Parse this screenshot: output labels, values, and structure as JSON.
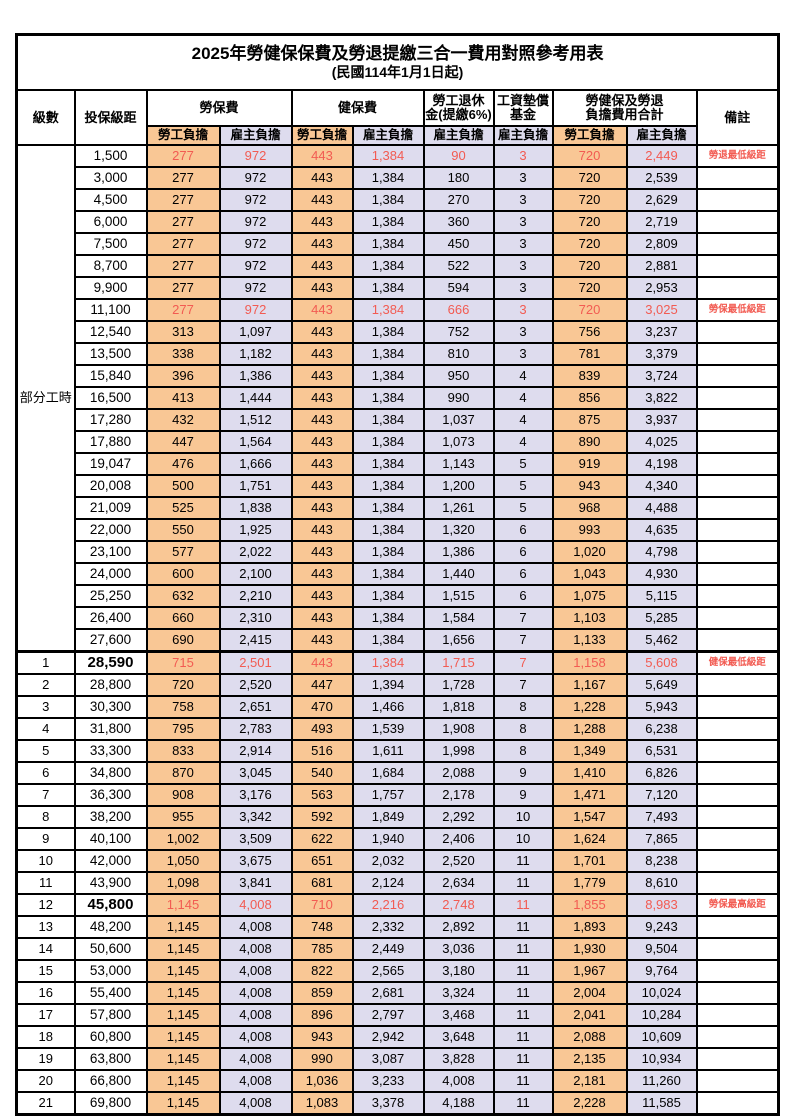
{
  "title": "2025年勞健保保費及勞退提繳三合一費用對照參考用表",
  "subtitle": "(民國114年1月1日起)",
  "colors": {
    "employee_bg": "#F9C795",
    "employer_bg": "#DEDCEE",
    "highlight_text": "#F25B52",
    "border": "#000000"
  },
  "header": {
    "level": "級數",
    "bracket": "投保級距",
    "labor_ins": "勞保費",
    "health_ins": "健保費",
    "pension_line1": "勞工退休",
    "pension_line2": "金(提繳6%)",
    "wage_fund_line1": "工資墊償",
    "wage_fund_line2": "基金",
    "total_line1": "勞健保及勞退",
    "total_line2": "負擔費用合計",
    "remark": "備註",
    "employee": "勞工負擔",
    "employer": "雇主負擔"
  },
  "part_time_label": "部分工時",
  "rows": [
    {
      "level": "部分工時",
      "level_rowspan": 23,
      "bracket": "1,500",
      "v": [
        "277",
        "972",
        "443",
        "1,384",
        "90",
        "3",
        "720",
        "2,449"
      ],
      "remark": "勞退最低級距",
      "red": true
    },
    {
      "bracket": "3,000",
      "v": [
        "277",
        "972",
        "443",
        "1,384",
        "180",
        "3",
        "720",
        "2,539"
      ],
      "remark": ""
    },
    {
      "bracket": "4,500",
      "v": [
        "277",
        "972",
        "443",
        "1,384",
        "270",
        "3",
        "720",
        "2,629"
      ],
      "remark": ""
    },
    {
      "bracket": "6,000",
      "v": [
        "277",
        "972",
        "443",
        "1,384",
        "360",
        "3",
        "720",
        "2,719"
      ],
      "remark": ""
    },
    {
      "bracket": "7,500",
      "v": [
        "277",
        "972",
        "443",
        "1,384",
        "450",
        "3",
        "720",
        "2,809"
      ],
      "remark": ""
    },
    {
      "bracket": "8,700",
      "v": [
        "277",
        "972",
        "443",
        "1,384",
        "522",
        "3",
        "720",
        "2,881"
      ],
      "remark": ""
    },
    {
      "bracket": "9,900",
      "v": [
        "277",
        "972",
        "443",
        "1,384",
        "594",
        "3",
        "720",
        "2,953"
      ],
      "remark": ""
    },
    {
      "bracket": "11,100",
      "v": [
        "277",
        "972",
        "443",
        "1,384",
        "666",
        "3",
        "720",
        "3,025"
      ],
      "remark": "勞保最低級距",
      "red": true
    },
    {
      "bracket": "12,540",
      "v": [
        "313",
        "1,097",
        "443",
        "1,384",
        "752",
        "3",
        "756",
        "3,237"
      ],
      "remark": ""
    },
    {
      "bracket": "13,500",
      "v": [
        "338",
        "1,182",
        "443",
        "1,384",
        "810",
        "3",
        "781",
        "3,379"
      ],
      "remark": ""
    },
    {
      "bracket": "15,840",
      "v": [
        "396",
        "1,386",
        "443",
        "1,384",
        "950",
        "4",
        "839",
        "3,724"
      ],
      "remark": ""
    },
    {
      "bracket": "16,500",
      "v": [
        "413",
        "1,444",
        "443",
        "1,384",
        "990",
        "4",
        "856",
        "3,822"
      ],
      "remark": ""
    },
    {
      "bracket": "17,280",
      "v": [
        "432",
        "1,512",
        "443",
        "1,384",
        "1,037",
        "4",
        "875",
        "3,937"
      ],
      "remark": ""
    },
    {
      "bracket": "17,880",
      "v": [
        "447",
        "1,564",
        "443",
        "1,384",
        "1,073",
        "4",
        "890",
        "4,025"
      ],
      "remark": ""
    },
    {
      "bracket": "19,047",
      "v": [
        "476",
        "1,666",
        "443",
        "1,384",
        "1,143",
        "5",
        "919",
        "4,198"
      ],
      "remark": ""
    },
    {
      "bracket": "20,008",
      "v": [
        "500",
        "1,751",
        "443",
        "1,384",
        "1,200",
        "5",
        "943",
        "4,340"
      ],
      "remark": ""
    },
    {
      "bracket": "21,009",
      "v": [
        "525",
        "1,838",
        "443",
        "1,384",
        "1,261",
        "5",
        "968",
        "4,488"
      ],
      "remark": ""
    },
    {
      "bracket": "22,000",
      "v": [
        "550",
        "1,925",
        "443",
        "1,384",
        "1,320",
        "6",
        "993",
        "4,635"
      ],
      "remark": ""
    },
    {
      "bracket": "23,100",
      "v": [
        "577",
        "2,022",
        "443",
        "1,384",
        "1,386",
        "6",
        "1,020",
        "4,798"
      ],
      "remark": ""
    },
    {
      "bracket": "24,000",
      "v": [
        "600",
        "2,100",
        "443",
        "1,384",
        "1,440",
        "6",
        "1,043",
        "4,930"
      ],
      "remark": ""
    },
    {
      "bracket": "25,250",
      "v": [
        "632",
        "2,210",
        "443",
        "1,384",
        "1,515",
        "6",
        "1,075",
        "5,115"
      ],
      "remark": ""
    },
    {
      "bracket": "26,400",
      "v": [
        "660",
        "2,310",
        "443",
        "1,384",
        "1,584",
        "7",
        "1,103",
        "5,285"
      ],
      "remark": ""
    },
    {
      "bracket": "27,600",
      "v": [
        "690",
        "2,415",
        "443",
        "1,384",
        "1,656",
        "7",
        "1,133",
        "5,462"
      ],
      "remark": ""
    },
    {
      "level": "1",
      "bracket": "28,590",
      "v": [
        "715",
        "2,501",
        "443",
        "1,384",
        "1,715",
        "7",
        "1,158",
        "5,608"
      ],
      "remark": "健保最低級距",
      "red": true,
      "bold_bracket": true,
      "section_start": true
    },
    {
      "level": "2",
      "bracket": "28,800",
      "v": [
        "720",
        "2,520",
        "447",
        "1,394",
        "1,728",
        "7",
        "1,167",
        "5,649"
      ],
      "remark": ""
    },
    {
      "level": "3",
      "bracket": "30,300",
      "v": [
        "758",
        "2,651",
        "470",
        "1,466",
        "1,818",
        "8",
        "1,228",
        "5,943"
      ],
      "remark": ""
    },
    {
      "level": "4",
      "bracket": "31,800",
      "v": [
        "795",
        "2,783",
        "493",
        "1,539",
        "1,908",
        "8",
        "1,288",
        "6,238"
      ],
      "remark": ""
    },
    {
      "level": "5",
      "bracket": "33,300",
      "v": [
        "833",
        "2,914",
        "516",
        "1,611",
        "1,998",
        "8",
        "1,349",
        "6,531"
      ],
      "remark": ""
    },
    {
      "level": "6",
      "bracket": "34,800",
      "v": [
        "870",
        "3,045",
        "540",
        "1,684",
        "2,088",
        "9",
        "1,410",
        "6,826"
      ],
      "remark": ""
    },
    {
      "level": "7",
      "bracket": "36,300",
      "v": [
        "908",
        "3,176",
        "563",
        "1,757",
        "2,178",
        "9",
        "1,471",
        "7,120"
      ],
      "remark": ""
    },
    {
      "level": "8",
      "bracket": "38,200",
      "v": [
        "955",
        "3,342",
        "592",
        "1,849",
        "2,292",
        "10",
        "1,547",
        "7,493"
      ],
      "remark": ""
    },
    {
      "level": "9",
      "bracket": "40,100",
      "v": [
        "1,002",
        "3,509",
        "622",
        "1,940",
        "2,406",
        "10",
        "1,624",
        "7,865"
      ],
      "remark": ""
    },
    {
      "level": "10",
      "bracket": "42,000",
      "v": [
        "1,050",
        "3,675",
        "651",
        "2,032",
        "2,520",
        "11",
        "1,701",
        "8,238"
      ],
      "remark": ""
    },
    {
      "level": "11",
      "bracket": "43,900",
      "v": [
        "1,098",
        "3,841",
        "681",
        "2,124",
        "2,634",
        "11",
        "1,779",
        "8,610"
      ],
      "remark": ""
    },
    {
      "level": "12",
      "bracket": "45,800",
      "v": [
        "1,145",
        "4,008",
        "710",
        "2,216",
        "2,748",
        "11",
        "1,855",
        "8,983"
      ],
      "remark": "勞保最高級距",
      "red": true,
      "bold_bracket": true
    },
    {
      "level": "13",
      "bracket": "48,200",
      "v": [
        "1,145",
        "4,008",
        "748",
        "2,332",
        "2,892",
        "11",
        "1,893",
        "9,243"
      ],
      "remark": ""
    },
    {
      "level": "14",
      "bracket": "50,600",
      "v": [
        "1,145",
        "4,008",
        "785",
        "2,449",
        "3,036",
        "11",
        "1,930",
        "9,504"
      ],
      "remark": ""
    },
    {
      "level": "15",
      "bracket": "53,000",
      "v": [
        "1,145",
        "4,008",
        "822",
        "2,565",
        "3,180",
        "11",
        "1,967",
        "9,764"
      ],
      "remark": ""
    },
    {
      "level": "16",
      "bracket": "55,400",
      "v": [
        "1,145",
        "4,008",
        "859",
        "2,681",
        "3,324",
        "11",
        "2,004",
        "10,024"
      ],
      "remark": ""
    },
    {
      "level": "17",
      "bracket": "57,800",
      "v": [
        "1,145",
        "4,008",
        "896",
        "2,797",
        "3,468",
        "11",
        "2,041",
        "10,284"
      ],
      "remark": ""
    },
    {
      "level": "18",
      "bracket": "60,800",
      "v": [
        "1,145",
        "4,008",
        "943",
        "2,942",
        "3,648",
        "11",
        "2,088",
        "10,609"
      ],
      "remark": ""
    },
    {
      "level": "19",
      "bracket": "63,800",
      "v": [
        "1,145",
        "4,008",
        "990",
        "3,087",
        "3,828",
        "11",
        "2,135",
        "10,934"
      ],
      "remark": ""
    },
    {
      "level": "20",
      "bracket": "66,800",
      "v": [
        "1,145",
        "4,008",
        "1,036",
        "3,233",
        "4,008",
        "11",
        "2,181",
        "11,260"
      ],
      "remark": ""
    },
    {
      "level": "21",
      "bracket": "69,800",
      "v": [
        "1,145",
        "4,008",
        "1,083",
        "3,378",
        "4,188",
        "11",
        "2,228",
        "11,585"
      ],
      "remark": ""
    }
  ]
}
